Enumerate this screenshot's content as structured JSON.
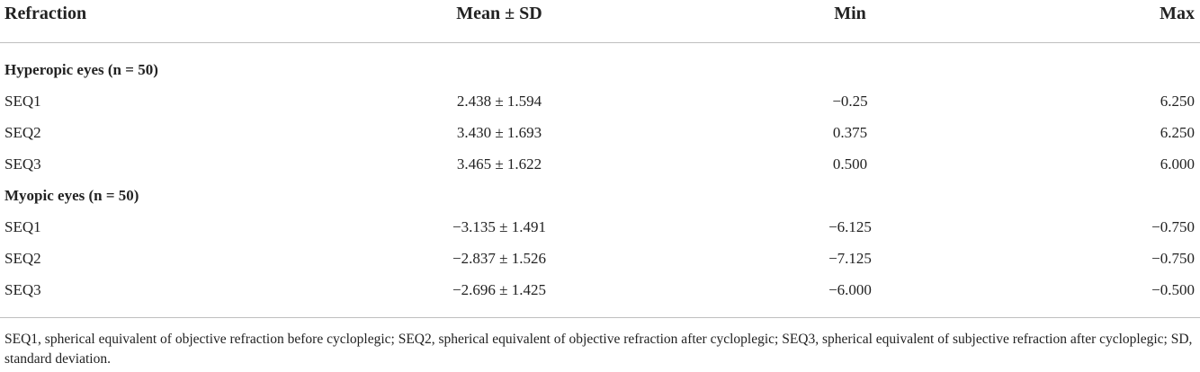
{
  "table": {
    "header": [
      "Refraction",
      "Mean ± SD",
      "Min",
      "Max"
    ],
    "sections": [
      {
        "title": "Hyperopic eyes (n = 50)",
        "rows": [
          [
            "SEQ1",
            "2.438 ± 1.594",
            "−0.25",
            "6.250"
          ],
          [
            "SEQ2",
            "3.430 ± 1.693",
            "0.375",
            "6.250"
          ],
          [
            "SEQ3",
            "3.465 ± 1.622",
            "0.500",
            "6.000"
          ]
        ]
      },
      {
        "title": "Myopic eyes (n = 50)",
        "rows": [
          [
            "SEQ1",
            "−3.135 ± 1.491",
            "−6.125",
            "−0.750"
          ],
          [
            "SEQ2",
            "−2.837 ± 1.526",
            "−7.125",
            "−0.750"
          ],
          [
            "SEQ3",
            "−2.696 ± 1.425",
            "−6.000",
            "−0.500"
          ]
        ]
      }
    ]
  },
  "footnote": "SEQ1, spherical equivalent of objective refraction before cycloplegic; SEQ2, spherical equivalent of objective refraction after cycloplegic; SEQ3, spherical equivalent of subjective refraction after cycloplegic; SD, standard deviation."
}
